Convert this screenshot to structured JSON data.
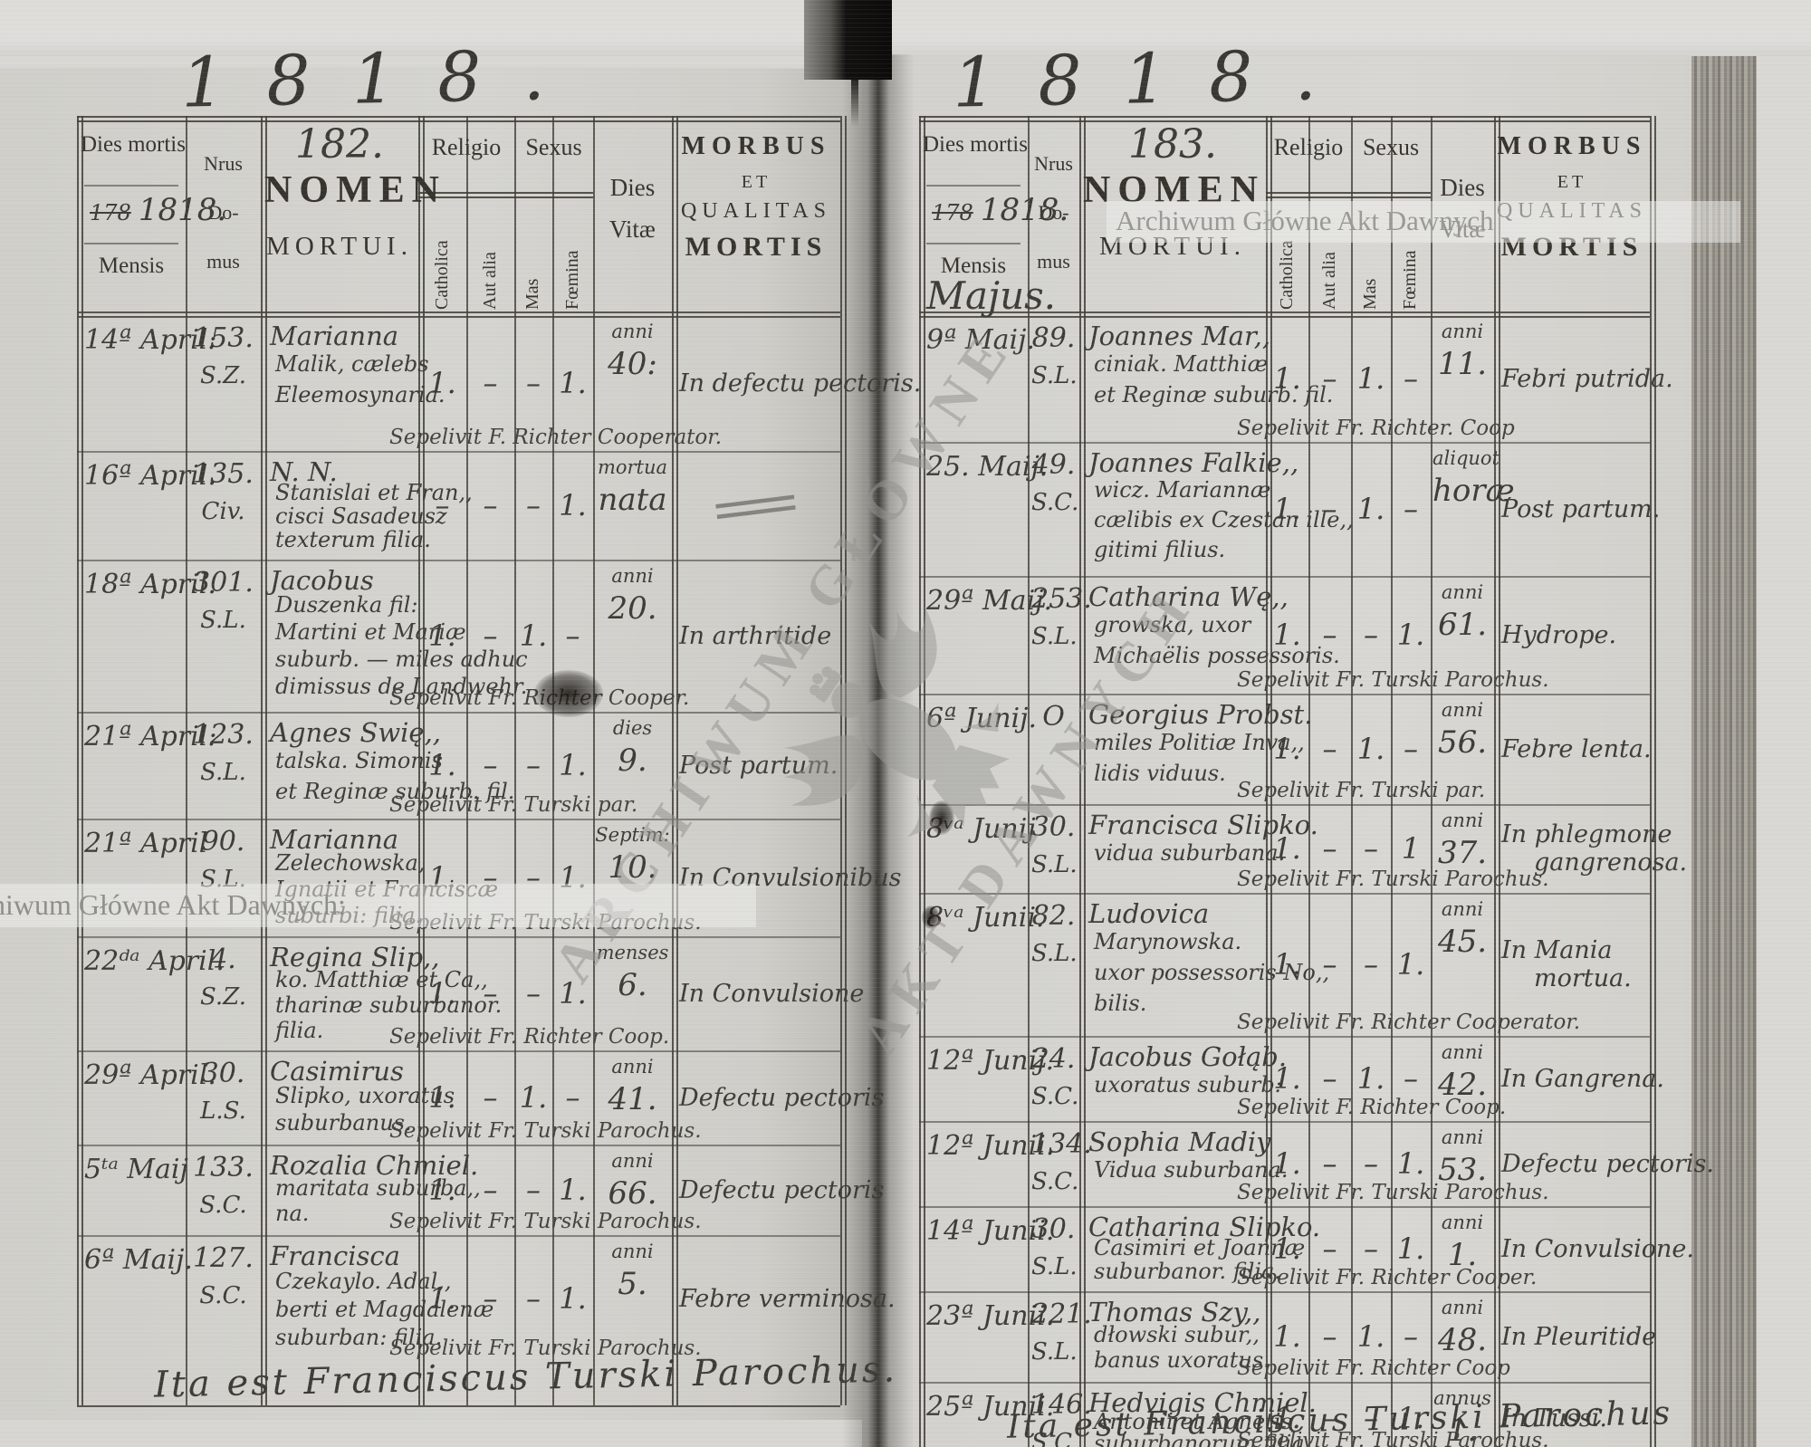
{
  "document": {
    "kind": "parish death register scan",
    "year_title": "1818."
  },
  "header_labels": {
    "dies_mortis": "Dies mortis",
    "year_old": "178",
    "year_new": "1818.",
    "mensis": "Mensis",
    "nrus": [
      "Nrus",
      "Do-",
      "mus"
    ],
    "nomen": [
      "NOMEN",
      "MORTUI."
    ],
    "religio": "Religio",
    "catholica": "Catholica",
    "aut_alia": "Aut alia",
    "sexus": "Sexus",
    "mas": "Mas",
    "foemina": "Fœmina",
    "dies_vitae": [
      "Dies",
      "Vitæ"
    ],
    "morbus": [
      "MORBUS",
      "ET",
      "QUALITAS",
      "MORTIS"
    ]
  },
  "watermarks": {
    "top_right": "Archiwum Główne Akt Dawnych",
    "bottom_left": "Archiwum Główne Akt Dawnych:",
    "diag1": "ARCHIWUM GŁÓWNE",
    "diag2": "AKT DAWNYCH"
  },
  "left_page": {
    "title": "1818.",
    "page_no": "182.",
    "month": "",
    "rows": [
      {
        "date": "14ª April:",
        "nr": "153.",
        "code": "S.Z.",
        "name": [
          "Marianna",
          "Malik, cælebs",
          "Eleemosynaria."
        ],
        "cath": "1.",
        "aut": "–",
        "mas": "–",
        "foem": "1.",
        "vita": [
          "anni",
          "40:"
        ],
        "morbus": [
          "In defectu pectoris."
        ],
        "sep": "Sepelivit F. Richter Cooperator."
      },
      {
        "date": "16ª April.",
        "nr": "135.",
        "code": "Civ.",
        "name": [
          "N.  N.",
          "Stanislai et Fran,,",
          "cisci Sasadeusz",
          "texterum filia."
        ],
        "cath": "–",
        "aut": "–",
        "mas": "–",
        "foem": "1.",
        "vita": [
          "mortua",
          "nata"
        ],
        "morbus": [
          "="
        ],
        "sep": ""
      },
      {
        "date": "18ª April.",
        "nr": "301.",
        "code": "S.L.",
        "name": [
          "Jacobus",
          "Duszenka fil:",
          "Martini et Mariæ",
          "suburb. — miles adhuc",
          "dimissus de Landwehr."
        ],
        "cath": "1.",
        "aut": "–",
        "mas": "1.",
        "foem": "–",
        "vita": [
          "anni",
          "20."
        ],
        "morbus": [
          "In arthritide"
        ],
        "sep": "Sepelivit Fr. Richter Cooper."
      },
      {
        "date": "21ª April:",
        "nr": "123.",
        "code": "S.L.",
        "name": [
          "Agnes Swię,,",
          "talska. Simonis",
          "et Reginæ suburb. fil."
        ],
        "cath": "1.",
        "aut": "–",
        "mas": "–",
        "foem": "1.",
        "vita": [
          "dies",
          "9."
        ],
        "morbus": [
          "Post partum."
        ],
        "sep": "Sepelivit Fr. Turski par."
      },
      {
        "date": "21ª April",
        "nr": "90.",
        "code": "S.L.",
        "name": [
          "Marianna",
          "Zelechowska,",
          "Ignatii et Franciscæ",
          "suburbi: filia."
        ],
        "cath": "1.",
        "aut": "–",
        "mas": "–",
        "foem": "1.",
        "vita": [
          "Septim:",
          "10."
        ],
        "morbus": [
          "In Convulsionibus"
        ],
        "sep": "Sepelivit Fr. Turski Parochus."
      },
      {
        "date": "22ᵈᵃ April.",
        "nr": "4.",
        "code": "S.Z.",
        "name": [
          "Regina Slip,,",
          "ko. Matthiæ et Ca,,",
          "tharinæ suburbanor.",
          "filia."
        ],
        "cath": "1.",
        "aut": "–",
        "mas": "–",
        "foem": "1.",
        "vita": [
          "menses",
          "6."
        ],
        "morbus": [
          "In Convulsione"
        ],
        "sep": "Sepelivit Fr. Richter Coop."
      },
      {
        "date": "29ª April.",
        "nr": "30.",
        "code": "L.S.",
        "name": [
          "Casimirus",
          "Slipko, uxoratus",
          "suburbanus."
        ],
        "cath": "1.",
        "aut": "–",
        "mas": "1.",
        "foem": "–",
        "vita": [
          "anni",
          "41."
        ],
        "morbus": [
          "Defectu pectoris"
        ],
        "sep": "Sepelivit Fr. Turski Parochus."
      },
      {
        "date": "5ᵗᵃ Maij",
        "nr": "133.",
        "code": "S.C.",
        "name": [
          "Rozalia Chmiel.",
          "maritata suburba,,",
          "na."
        ],
        "cath": "1.",
        "aut": "–",
        "mas": "–",
        "foem": "1.",
        "vita": [
          "anni",
          "66."
        ],
        "morbus": [
          "Defectu pectoris"
        ],
        "sep": "Sepelivit Fr. Turski Parochus."
      },
      {
        "date": "6ª Maij.",
        "nr": "127.",
        "code": "S.C.",
        "name": [
          "Francisca",
          "Czekaylo. Adal,,",
          "berti et Magdalenæ",
          "suburban: filia."
        ],
        "cath": "1.",
        "aut": "–",
        "mas": "–",
        "foem": "1.",
        "vita": [
          "anni",
          "5."
        ],
        "morbus": [
          "Febre verminosa."
        ],
        "sep": "Sepelivit Fr. Turski Parochus."
      }
    ],
    "signature": "Ita est Franciscus Turski Parochus."
  },
  "right_page": {
    "title": "1818.",
    "page_no": "183.",
    "month": "Majus.",
    "rows": [
      {
        "date": "9ª Maij.",
        "nr": "89.",
        "code": "S.L.",
        "name": [
          "Joannes Mar,,",
          "ciniak. Matthiæ",
          "et Reginæ suburb. fil."
        ],
        "cath": "1.",
        "aut": "–",
        "mas": "1.",
        "foem": "–",
        "vita": [
          "anni",
          "11."
        ],
        "morbus": [
          "Febri putrida."
        ],
        "sep": "Sepelivit Fr. Richter. Coop"
      },
      {
        "date": "25. Maij.",
        "nr": "49.",
        "code": "S.C.",
        "name": [
          "Joannes Falkie,,",
          "wicz. Mariannæ",
          "cælibis ex Czestan ille,,",
          "gitimi filius."
        ],
        "cath": "1.",
        "aut": "–",
        "mas": "1.",
        "foem": "–",
        "vita": [
          "aliquot",
          "horæ"
        ],
        "morbus": [
          "Post partum."
        ],
        "sep": ""
      },
      {
        "date": "29ª Maij.",
        "nr": "253.",
        "code": "S.L.",
        "name": [
          "Catharina Wę,,",
          "growska, uxor",
          "Michaëlis possessoris."
        ],
        "cath": "1.",
        "aut": "–",
        "mas": "–",
        "foem": "1.",
        "vita": [
          "anni",
          "61."
        ],
        "morbus": [
          "Hydrope."
        ],
        "sep": "Sepelivit Fr. Turski Parochus."
      },
      {
        "date": "6ª Junij.",
        "nr": "O",
        "code": "",
        "name": [
          "Georgius Probst.",
          "miles Politiæ Inva,,",
          "lidis viduus."
        ],
        "cath": "1.",
        "aut": "–",
        "mas": "1.",
        "foem": "–",
        "vita": [
          "anni",
          "56."
        ],
        "morbus": [
          "Febre lenta."
        ],
        "sep": "Sepelivit Fr. Turski par."
      },
      {
        "date": "8ᵛᵃ Junij",
        "nr": "30.",
        "code": "S.L.",
        "name": [
          "Francisca Slipko.",
          "vidua suburbana."
        ],
        "cath": "1.",
        "aut": "–",
        "mas": "–",
        "foem": "1",
        "vita": [
          "anni",
          "37."
        ],
        "morbus": [
          "In phlegmone",
          "gangrenosa."
        ],
        "sep": "Sepelivit Fr. Turski Parochus."
      },
      {
        "date": "8ᵛᵃ Junii.",
        "nr": "82.",
        "code": "S.L.",
        "name": [
          "Ludovica",
          "Marynowska.",
          "uxor possessoris No,,",
          "bilis."
        ],
        "cath": "1.",
        "aut": "–",
        "mas": "–",
        "foem": "1.",
        "vita": [
          "anni",
          "45."
        ],
        "morbus": [
          "In Mania",
          "mortua."
        ],
        "sep": "Sepelivit Fr. Richter Cooperator."
      },
      {
        "date": "12ª Junij.",
        "nr": "24.",
        "code": "S.C.",
        "name": [
          "Jacobus Gołąb.",
          "uxoratus suburb:"
        ],
        "cath": "1.",
        "aut": "–",
        "mas": "1.",
        "foem": "–",
        "vita": [
          "anni",
          "42."
        ],
        "morbus": [
          "In Gangrena."
        ],
        "sep": "Sepelivit F. Richter Coop."
      },
      {
        "date": "12ª Junii.",
        "nr": "134.",
        "code": "S.C.",
        "name": [
          "Sophia Madiy",
          "Vidua suburbana."
        ],
        "cath": "1.",
        "aut": "–",
        "mas": "–",
        "foem": "1.",
        "vita": [
          "anni",
          "53."
        ],
        "morbus": [
          "Defectu pectoris."
        ],
        "sep": "Sepelivit Fr. Turski Parochus."
      },
      {
        "date": "14ª Junii.",
        "nr": "30.",
        "code": "S.L.",
        "name": [
          "Catharina Slipko.",
          "Casimiri et Joannæ",
          "suburbanor. filia."
        ],
        "cath": "1.",
        "aut": "–",
        "mas": "–",
        "foem": "1.",
        "vita": [
          "anni",
          "1."
        ],
        "morbus": [
          "In Convulsione."
        ],
        "sep": "Sepelivit Fr. Richter Cooper."
      },
      {
        "date": "23ª Junii.",
        "nr": "221.",
        "code": "S.L.",
        "name": [
          "Thomas Szy,,",
          "dłowski subur,,",
          "banus uxoratus."
        ],
        "cath": "1.",
        "aut": "–",
        "mas": "1.",
        "foem": "–",
        "vita": [
          "anni",
          "48."
        ],
        "morbus": [
          "In Pleuritide"
        ],
        "sep": "Sepelivit Fr. Richter Coop"
      },
      {
        "date": "25ª Junii.",
        "nr": "146.",
        "code": "S.C.",
        "name": [
          "Hedvigis Chmiel.",
          "Antonii et Agnetis",
          "suburbanorum filia."
        ],
        "cath": "1.",
        "aut": "–",
        "mas": "–",
        "foem": "1.",
        "vita": [
          "annus",
          "1."
        ],
        "morbus": [
          "In Tussi."
        ],
        "sep": "Sepelivit Fr. Turski Parochus."
      }
    ],
    "signature": "Ita est Franciscus Turski Parochus"
  }
}
